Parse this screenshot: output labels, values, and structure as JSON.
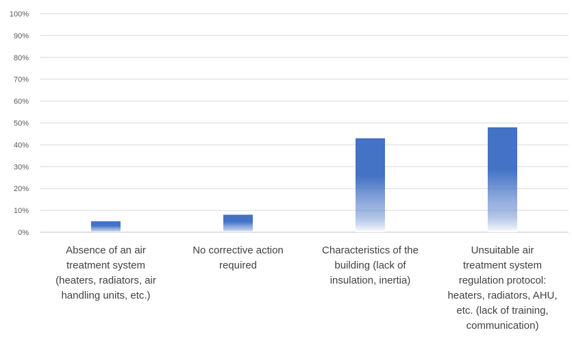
{
  "chart_data": {
    "type": "bar",
    "title": "",
    "xlabel": "",
    "ylabel": "",
    "ylim": [
      0,
      100
    ],
    "y_tick_values": [
      0,
      10,
      20,
      30,
      40,
      50,
      60,
      70,
      80,
      90,
      100
    ],
    "y_tick_labels": [
      "0%",
      "10%",
      "20%",
      "30%",
      "40%",
      "50%",
      "60%",
      "70%",
      "80%",
      "90%",
      "100%"
    ],
    "categories": [
      "Absence of an air\ntreatment system\n(heaters, radiators, air\nhandling units, etc.)",
      "No corrective action\nrequired",
      "Characteristics of the\nbuilding (lack of\ninsulation, inertia)",
      "Unsuitable air\ntreatment system\nregulation protocol:\nheaters, radiators, AHU,\netc. (lack of training,\ncommunication)"
    ],
    "values": [
      5,
      8,
      43,
      48
    ],
    "grid": true,
    "legend": "none",
    "bar_color": "#4472C4"
  }
}
